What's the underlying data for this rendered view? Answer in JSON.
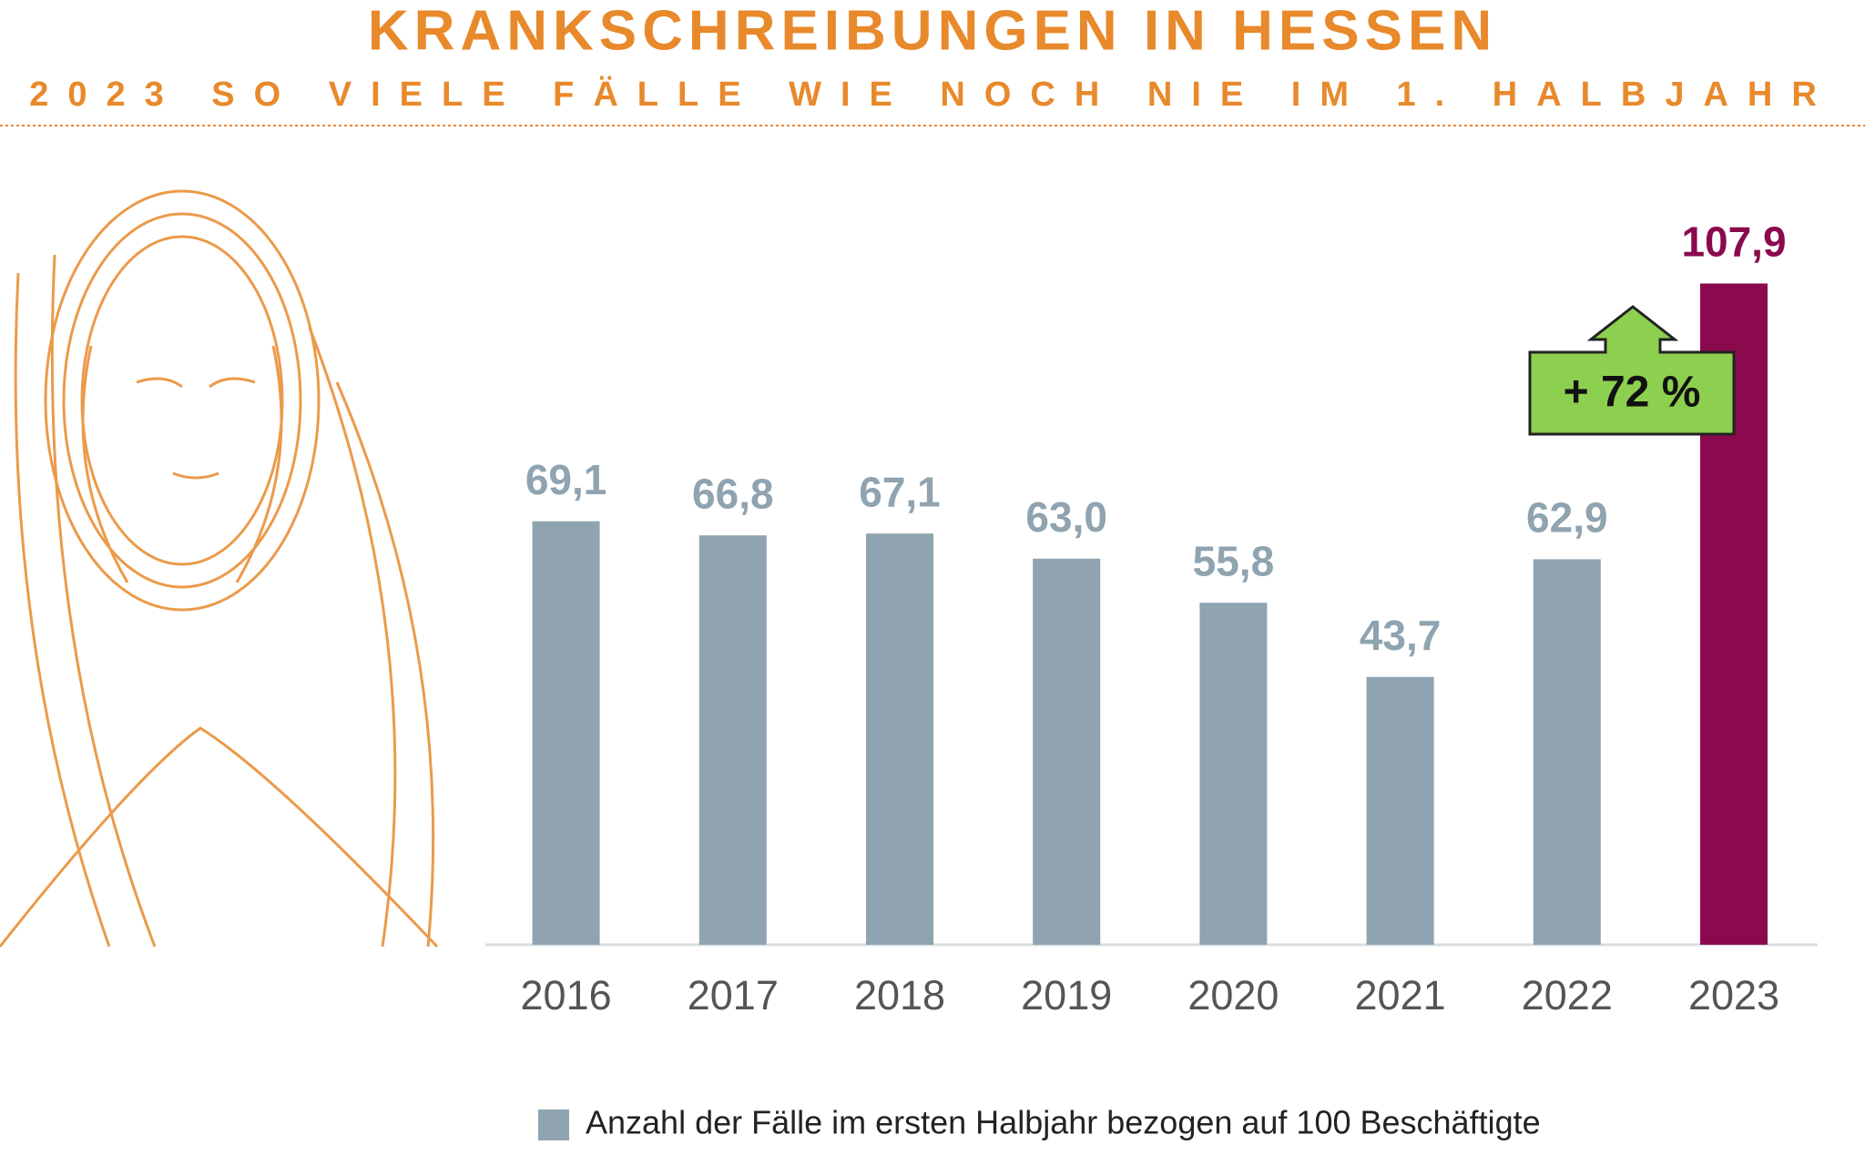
{
  "chart_data": {
    "type": "bar",
    "title": "KRANKSCHREIBUNGEN IN HESSEN",
    "subtitle": "2023 SO VIELE FÄLLE WIE NOCH NIE IM 1. HALBJAHR",
    "categories": [
      "2016",
      "2017",
      "2018",
      "2019",
      "2020",
      "2021",
      "2022",
      "2023"
    ],
    "values": [
      69.1,
      66.8,
      67.1,
      63.0,
      55.8,
      43.7,
      62.9,
      107.9
    ],
    "value_labels": [
      "69,1",
      "66,8",
      "67,1",
      "63,0",
      "55,8",
      "43,7",
      "62,9",
      "107,9"
    ],
    "colors": [
      "#8fa3b0",
      "#8fa3b0",
      "#8fa3b0",
      "#8fa3b0",
      "#8fa3b0",
      "#8fa3b0",
      "#8fa3b0",
      "#8b0a4e"
    ],
    "ylim": [
      0,
      120
    ],
    "annotation": "+ 72 %",
    "legend": "Anzahl der Fälle im ersten Halbjahr bezogen auf 100 Beschäftigte"
  }
}
